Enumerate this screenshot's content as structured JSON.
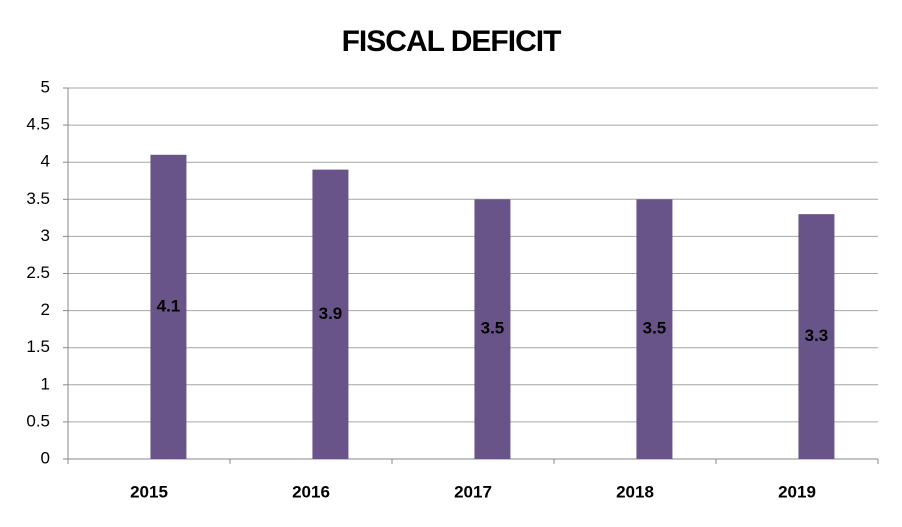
{
  "chart_data": {
    "type": "bar",
    "title": "FISCAL DEFICIT",
    "categories": [
      "2015",
      "2016",
      "2017",
      "2018",
      "2019"
    ],
    "values": [
      4.1,
      3.9,
      3.5,
      3.5,
      3.3
    ],
    "color": "#69548a",
    "ylim": [
      0,
      5
    ],
    "yticks": [
      0,
      0.5,
      1,
      1.5,
      2,
      2.5,
      3,
      3.5,
      4,
      4.5,
      5
    ],
    "grid": true
  }
}
